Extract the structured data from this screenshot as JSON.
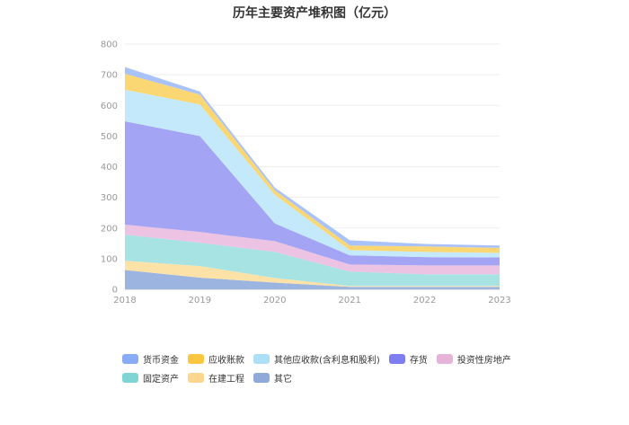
{
  "chart_data": {
    "type": "area",
    "stacked": true,
    "title": "历年主要资产堆积图（亿元）",
    "x": [
      "2018",
      "2019",
      "2020",
      "2021",
      "2022",
      "2023"
    ],
    "ylim": [
      0,
      800
    ],
    "yticks": [
      0,
      100,
      200,
      300,
      400,
      500,
      600,
      700,
      800
    ],
    "grid": true,
    "legend_position": "bottom",
    "series": [
      {
        "name": "其它",
        "color": "#9bb5e0",
        "values": [
          63,
          38,
          22,
          8,
          8,
          8
        ]
      },
      {
        "name": "在建工程",
        "color": "#fde2a8",
        "values": [
          30,
          38,
          15,
          3,
          3,
          3
        ]
      },
      {
        "name": "固定资产",
        "color": "#a7e3e3",
        "values": [
          85,
          76,
          85,
          47,
          38,
          38
        ]
      },
      {
        "name": "投资性房地产",
        "color": "#ecc3e2",
        "values": [
          33,
          35,
          35,
          23,
          29,
          29
        ]
      },
      {
        "name": "存货",
        "color": "#a4a4f5",
        "values": [
          337,
          313,
          58,
          30,
          27,
          26
        ]
      },
      {
        "name": "其他应收款(含利息和股利)",
        "color": "#c4e9fb",
        "values": [
          103,
          103,
          93,
          17,
          17,
          15
        ]
      },
      {
        "name": "应收账款",
        "color": "#fbd774",
        "values": [
          52,
          32,
          15,
          15,
          18,
          16
        ]
      },
      {
        "name": "货币资金",
        "color": "#a9c2fa",
        "values": [
          22,
          10,
          9,
          17,
          8,
          8
        ]
      }
    ]
  },
  "legend": {
    "row1": [
      {
        "label": "货币资金",
        "color": "#89abf5"
      },
      {
        "label": "应收账款",
        "color": "#fcc740"
      },
      {
        "label": "其他应收款(含利息和股利)",
        "color": "#ade0f7"
      },
      {
        "label": "存货",
        "color": "#7e7ef0"
      },
      {
        "label": "投资性房地产",
        "color": "#e6b4d9"
      }
    ],
    "row2": [
      {
        "label": "固定资产",
        "color": "#7fd4d4"
      },
      {
        "label": "在建工程",
        "color": "#fcd58e"
      },
      {
        "label": "其它",
        "color": "#8faad8"
      }
    ]
  }
}
